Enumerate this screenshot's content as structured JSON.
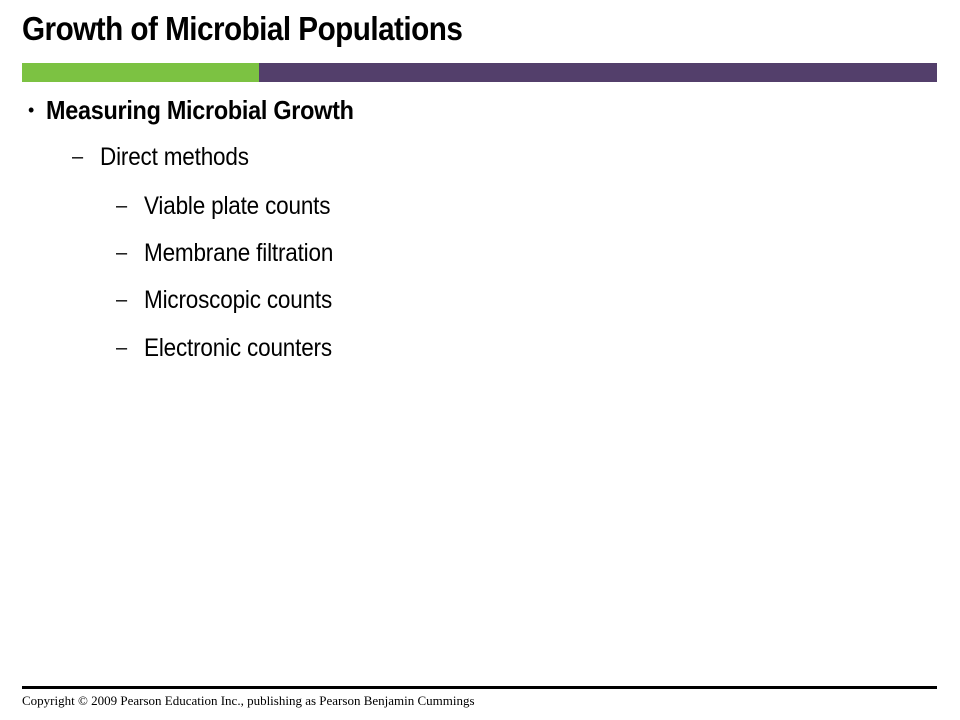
{
  "slide": {
    "title": "Growth of Microbial Populations",
    "accent_colors": {
      "green": "#7cc242",
      "purple": "#533f6b"
    },
    "bullets": [
      {
        "marker": "•",
        "text": "Measuring Microbial Growth",
        "children": [
          {
            "marker": "–",
            "text": "Direct methods",
            "children": [
              {
                "marker": "–",
                "text": "Viable plate counts"
              },
              {
                "marker": "–",
                "text": "Membrane filtration"
              },
              {
                "marker": "–",
                "text": "Microscopic counts"
              },
              {
                "marker": "–",
                "text": "Electronic counters"
              }
            ]
          }
        ]
      }
    ],
    "footer": "Copyright © 2009 Pearson Education Inc., publishing as Pearson Benjamin Cummings"
  }
}
